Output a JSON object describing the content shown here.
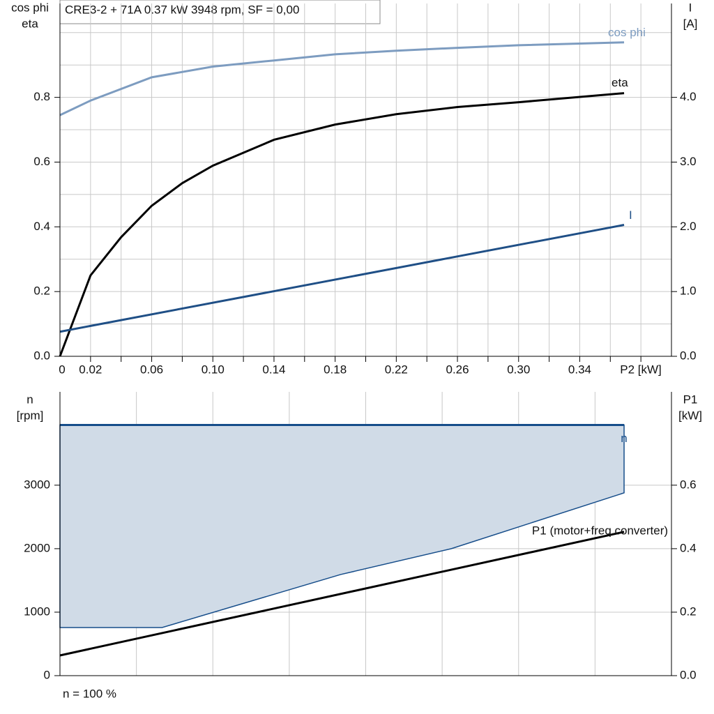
{
  "chart_data": [
    {
      "type": "line",
      "title": "CRE3-2 + 71A   0.37 kW   3948 rpm, SF = 0,00",
      "y_label": [
        "cos phi",
        "eta"
      ],
      "y2_label": [
        "I",
        "[A]"
      ],
      "x_label": "P2 [kW]",
      "xlim": [
        0,
        0.4
      ],
      "ylim": [
        0,
        1.09
      ],
      "y2lim": [
        0,
        5.45
      ],
      "xticks": [
        0,
        0.02,
        0.06,
        {
          "value": 0.1,
          "label": "0.10"
        },
        0.14,
        0.18,
        0.22,
        0.26,
        {
          "value": 0.3,
          "label": "0.30"
        },
        0.34
      ],
      "yticks": [
        {
          "value": 0,
          "label": "0.0"
        },
        0.2,
        0.4,
        0.6,
        0.8
      ],
      "y2ticks": [
        {
          "value": 0,
          "label": "0.0"
        },
        {
          "value": 1,
          "label": "1.0"
        },
        {
          "value": 2,
          "label": "2.0"
        },
        {
          "value": 3,
          "label": "3.0"
        },
        {
          "value": 4,
          "label": "4.0"
        }
      ],
      "grid": true,
      "minor_grid": true,
      "series": [
        {
          "name": "cos phi",
          "color": "#7d9cc0",
          "x": [
            0,
            0.02,
            0.06,
            0.1,
            0.14,
            0.18,
            0.22,
            0.26,
            0.3,
            0.369
          ],
          "values": [
            0.745,
            0.79,
            0.862,
            0.895,
            0.914,
            0.933,
            0.944,
            0.953,
            0.961,
            0.97
          ]
        },
        {
          "name": "eta",
          "color": "#000000",
          "x": [
            0,
            0.02,
            0.04,
            0.06,
            0.08,
            0.1,
            0.14,
            0.18,
            0.22,
            0.26,
            0.3,
            0.369
          ],
          "values": [
            0,
            0.25,
            0.368,
            0.465,
            0.535,
            0.589,
            0.669,
            0.716,
            0.748,
            0.77,
            0.785,
            0.813
          ]
        },
        {
          "name": "I",
          "color": "#1f4f86",
          "axis": "y2",
          "x": [
            0,
            0.369
          ],
          "values": [
            0.38,
            2.03
          ]
        }
      ]
    },
    {
      "type": "line",
      "y_label": [
        "n",
        "[rpm]"
      ],
      "y2_label": [
        "P1",
        "[kW]"
      ],
      "note": "n = 100 %",
      "xlim": [
        0,
        0.4
      ],
      "ylim": [
        0,
        4470
      ],
      "y2lim": [
        0,
        0.894
      ],
      "xgrid": [
        0.05,
        0.1,
        0.15,
        0.2,
        0.25,
        0.3,
        0.35
      ],
      "yticks": [
        0,
        1000,
        2000,
        3000
      ],
      "y2ticks": [
        {
          "value": 0,
          "label": "0.0"
        },
        0.2,
        0.4,
        0.6
      ],
      "grid": true,
      "minor_grid": false,
      "series": [
        {
          "name": "n",
          "color": "#164d8a",
          "fill": "#d0dbe7",
          "x": [
            0,
            0.369
          ],
          "values": [
            3948,
            3948
          ],
          "min_x": [
            0,
            0.0668,
            0.1836,
            0.256,
            0.369
          ],
          "min_values": [
            758,
            758,
            1593,
            2000,
            2879
          ]
        },
        {
          "name": "P1 (motor+freq.converter)",
          "color": "#000000",
          "axis": "y2",
          "x": [
            0,
            0.369
          ],
          "values": [
            0.0637,
            0.453
          ]
        }
      ]
    }
  ]
}
